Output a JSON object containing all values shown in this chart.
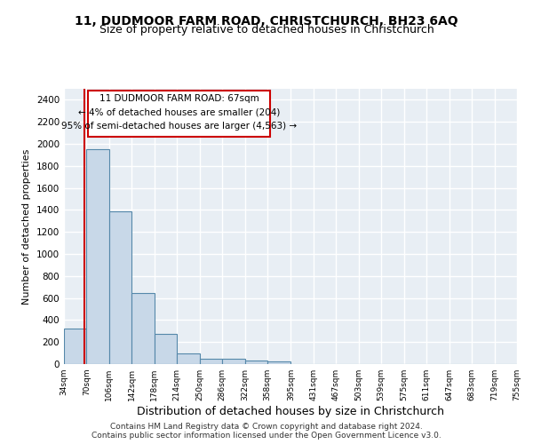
{
  "title1": "11, DUDMOOR FARM ROAD, CHRISTCHURCH, BH23 6AQ",
  "title2": "Size of property relative to detached houses in Christchurch",
  "xlabel": "Distribution of detached houses by size in Christchurch",
  "ylabel": "Number of detached properties",
  "footer1": "Contains HM Land Registry data © Crown copyright and database right 2024.",
  "footer2": "Contains public sector information licensed under the Open Government Licence v3.0.",
  "annotation_line1": "11 DUDMOOR FARM ROAD: 67sqm",
  "annotation_line2": "← 4% of detached houses are smaller (204)",
  "annotation_line3": "95% of semi-detached houses are larger (4,563) →",
  "bar_edges": [
    34,
    70,
    106,
    142,
    178,
    214,
    250,
    286,
    322,
    358,
    395,
    431,
    467,
    503,
    539,
    575,
    611,
    647,
    683,
    719,
    755
  ],
  "bar_heights": [
    325,
    1950,
    1390,
    645,
    275,
    100,
    50,
    45,
    35,
    22,
    0,
    0,
    0,
    0,
    0,
    0,
    0,
    0,
    0,
    0
  ],
  "bar_color": "#c8d8e8",
  "bar_edge_color": "#5588aa",
  "vline_x": 67,
  "vline_color": "#cc0000",
  "annotation_box_color": "#cc0000",
  "ylim": [
    0,
    2500
  ],
  "yticks": [
    0,
    200,
    400,
    600,
    800,
    1000,
    1200,
    1400,
    1600,
    1800,
    2000,
    2200,
    2400
  ],
  "background_color": "#e8eef4",
  "grid_color": "#ffffff",
  "title1_fontsize": 10,
  "title2_fontsize": 9,
  "xlabel_fontsize": 9,
  "ylabel_fontsize": 8,
  "footer_fontsize": 6.5,
  "annotation_fontsize": 7.5
}
